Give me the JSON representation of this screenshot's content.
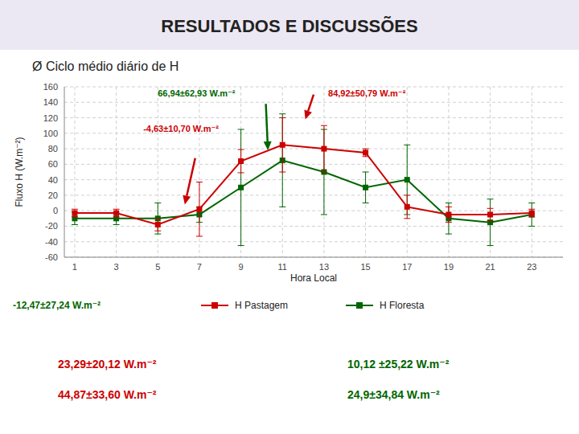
{
  "chart_data": {
    "type": "line",
    "title": "RESULTADOS E DISCUSSÕES",
    "subtitle": "Ø  Ciclo médio diário de H",
    "x_label": "Hora Local",
    "y_label": "Fluxo H (W.m⁻²)",
    "x": [
      1,
      3,
      5,
      7,
      9,
      11,
      13,
      15,
      17,
      19,
      21,
      23
    ],
    "series": [
      {
        "name": "H Pastagem",
        "color": "#CC0000",
        "marker": "square",
        "line_style": "solid",
        "values": [
          -3,
          -3,
          -18,
          2,
          64,
          85,
          80,
          75,
          5,
          -5,
          -5,
          -3
        ],
        "errors": [
          5,
          5,
          8,
          35,
          15,
          35,
          30,
          5,
          15,
          10,
          8,
          5
        ]
      },
      {
        "name": "H Floresta",
        "color": "#006600",
        "marker": "square",
        "line_style": "solid",
        "values": [
          -10,
          -10,
          -10,
          -5,
          30,
          65,
          50,
          30,
          40,
          -10,
          -15,
          -5
        ],
        "errors": [
          8,
          8,
          20,
          10,
          75,
          60,
          55,
          20,
          45,
          20,
          30,
          15
        ]
      }
    ],
    "xlim": [
      0.5,
      24.5
    ],
    "xticks": [
      1,
      3,
      5,
      7,
      9,
      11,
      13,
      15,
      17,
      19,
      21,
      23
    ],
    "ylim": [
      -60,
      160
    ],
    "yticks": [
      -60,
      -40,
      -20,
      0,
      20,
      40,
      60,
      80,
      100,
      120,
      140,
      160
    ],
    "grid": true,
    "legend": "bottom",
    "annotations": [
      {
        "text": "66,94±62,93 W.m⁻²",
        "color": "#006600"
      },
      {
        "text": "84,92±50,79 W.m⁻²",
        "color": "#CC0000"
      },
      {
        "text": "-4,63±10,70 W.m⁻²",
        "color": "#CC0000"
      },
      {
        "text": "-12,47±27,24 W.m⁻²",
        "color": "#006600"
      },
      {
        "text": "23,29±20,12 W.m⁻²",
        "color": "#CC0000"
      },
      {
        "text": "44,87±33,60 W.m⁻²",
        "color": "#CC0000"
      },
      {
        "text": "10,12 ±25,22 W.m⁻²",
        "color": "#006600"
      },
      {
        "text": "24,9±34,84 W.m⁻²",
        "color": "#006600"
      }
    ]
  }
}
